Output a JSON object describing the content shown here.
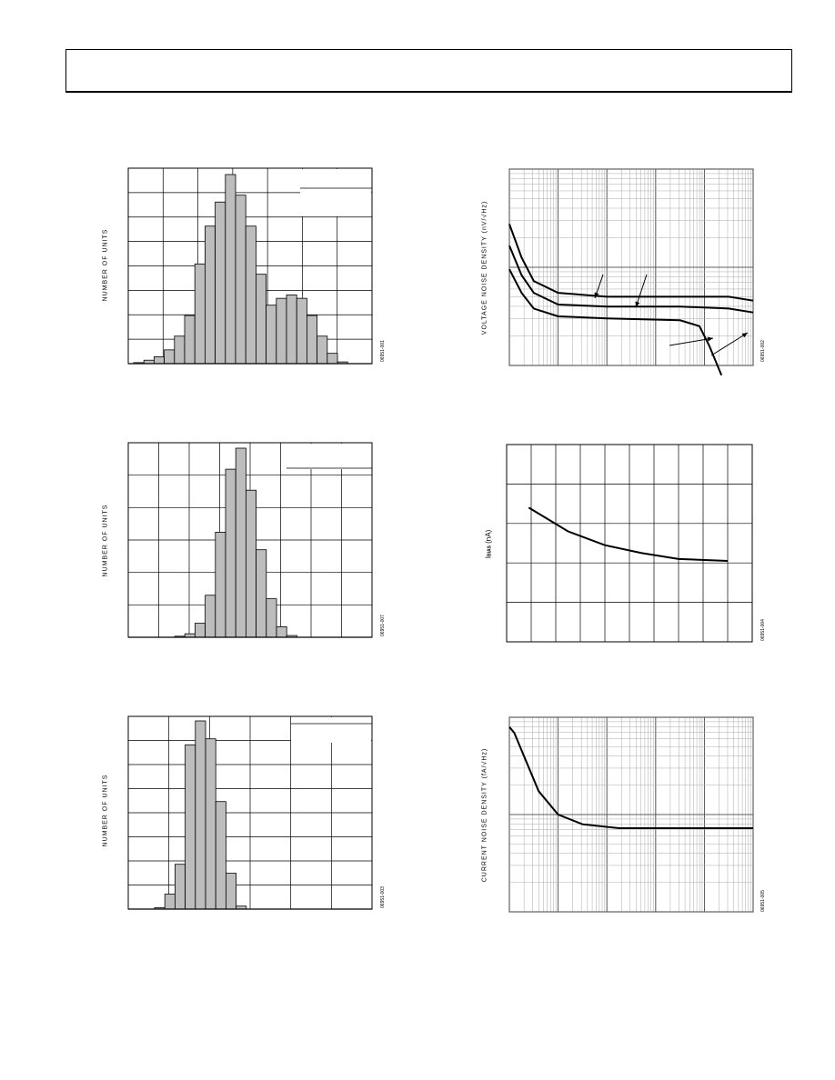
{
  "chart_data": [
    {
      "type": "bar",
      "ylabel": "NUMBER OF UNITS",
      "figure_code": "06951-001",
      "values": [
        0.3,
        1,
        2,
        4,
        8,
        14,
        29,
        40,
        47,
        55,
        49,
        40,
        26,
        17,
        19,
        20,
        19,
        14,
        8,
        3,
        0.5
      ]
    },
    {
      "type": "bar",
      "ylabel": "NUMBER OF UNITS",
      "figure_code": "06951-007",
      "values": [
        0.3,
        1,
        4,
        12,
        30,
        48,
        54,
        42,
        25,
        11,
        3,
        0.5
      ]
    },
    {
      "type": "bar",
      "ylabel": "NUMBER OF UNITS",
      "figure_code": "06951-003",
      "values": [
        0.5,
        5,
        15,
        55,
        63,
        57,
        36,
        12,
        1
      ]
    },
    {
      "type": "line",
      "ylabel": "VOLTAGE NOISE DENSITY (nV/√Hz)",
      "figure_code": "06951-002",
      "xscale": "log",
      "series": [
        {
          "points": [
            [
              0,
              0.28
            ],
            [
              0.05,
              0.45
            ],
            [
              0.1,
              0.57
            ],
            [
              0.2,
              0.63
            ],
            [
              0.4,
              0.65
            ],
            [
              0.7,
              0.65
            ],
            [
              0.9,
              0.65
            ],
            [
              1,
              0.67
            ]
          ]
        },
        {
          "points": [
            [
              0,
              0.39
            ],
            [
              0.05,
              0.54
            ],
            [
              0.1,
              0.63
            ],
            [
              0.2,
              0.69
            ],
            [
              0.4,
              0.7
            ],
            [
              0.7,
              0.7
            ],
            [
              0.9,
              0.71
            ],
            [
              1,
              0.73
            ]
          ]
        },
        {
          "points": [
            [
              0,
              0.51
            ],
            [
              0.05,
              0.63
            ],
            [
              0.1,
              0.71
            ],
            [
              0.2,
              0.75
            ],
            [
              0.4,
              0.76
            ],
            [
              0.7,
              0.77
            ],
            [
              0.78,
              0.8
            ],
            [
              0.82,
              0.9
            ],
            [
              0.87,
              1.05
            ]
          ]
        }
      ]
    },
    {
      "type": "line",
      "ylabel_main": "I",
      "ylabel_sub": "BIAS",
      "ylabel_unit": "(nA)",
      "figure_code": "06951-004",
      "series": [
        {
          "points": [
            [
              0.09,
              0.32
            ],
            [
              0.25,
              0.44
            ],
            [
              0.4,
              0.51
            ],
            [
              0.55,
              0.55
            ],
            [
              0.7,
              0.58
            ],
            [
              0.9,
              0.59
            ]
          ]
        }
      ]
    },
    {
      "type": "line",
      "ylabel": "CURRENT NOISE DENSITY (fA/√Hz)",
      "figure_code": "06951-005",
      "xscale": "log",
      "series": [
        {
          "points": [
            [
              0,
              0.05
            ],
            [
              0.02,
              0.08
            ],
            [
              0.06,
              0.2
            ],
            [
              0.12,
              0.38
            ],
            [
              0.2,
              0.5
            ],
            [
              0.3,
              0.55
            ],
            [
              0.45,
              0.57
            ],
            [
              0.7,
              0.57
            ],
            [
              1,
              0.57
            ]
          ]
        }
      ]
    }
  ]
}
